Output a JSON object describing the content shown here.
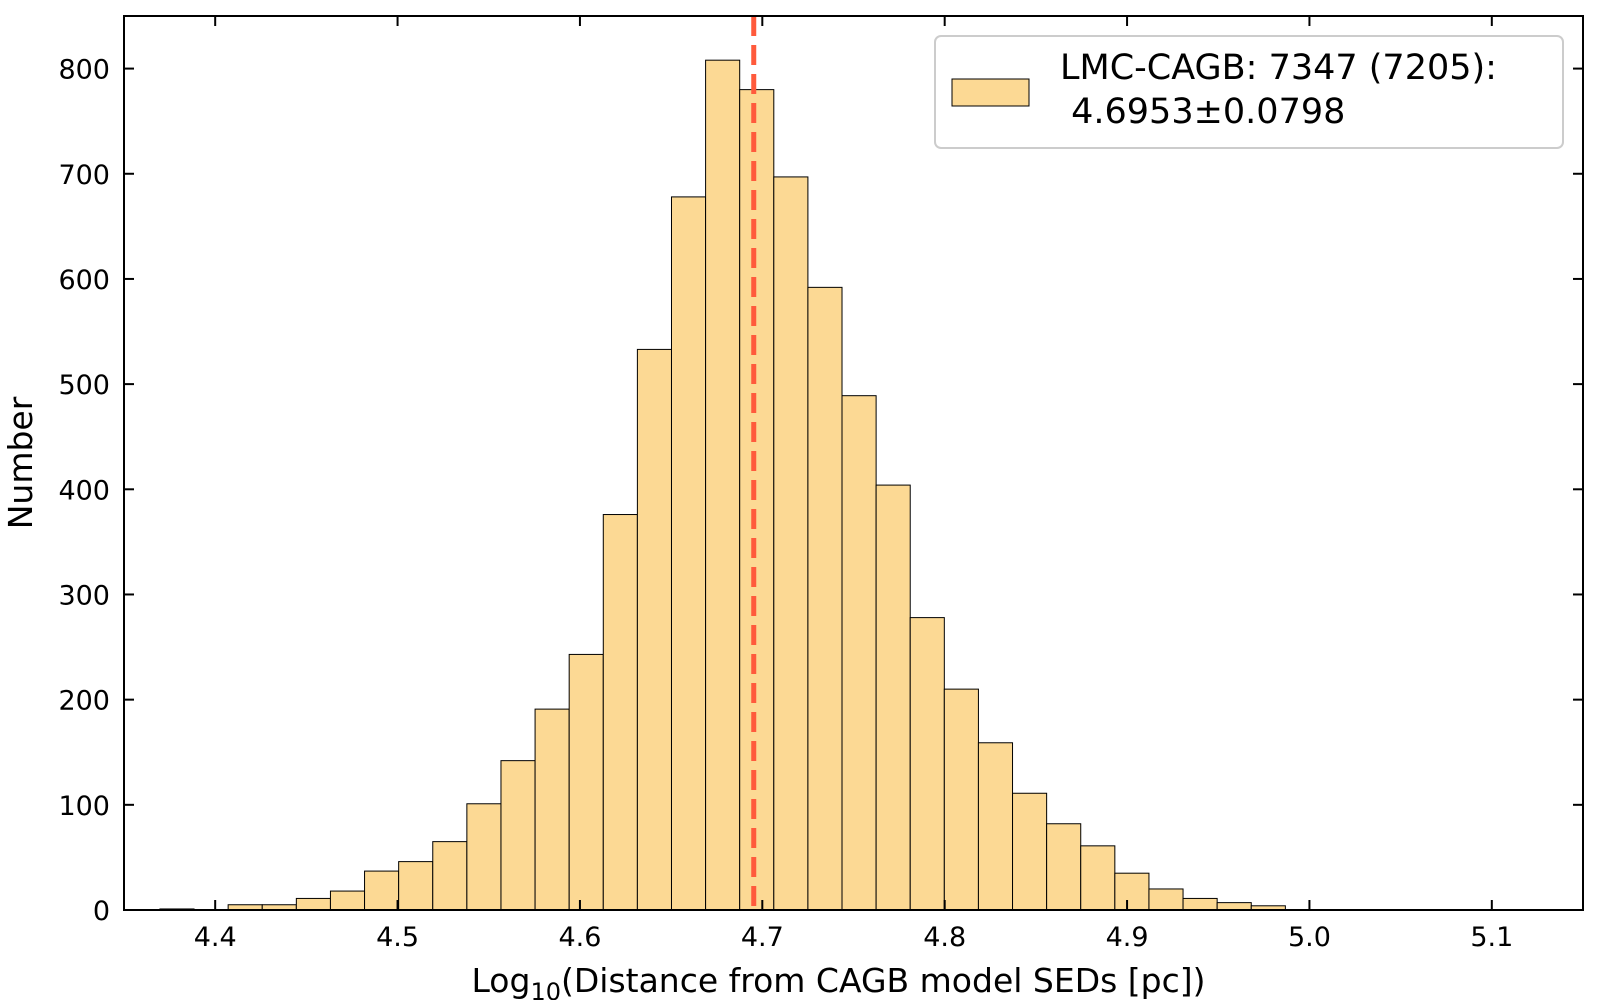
{
  "chart_data": {
    "type": "bar",
    "title": "",
    "xlabel_prefix": "Log",
    "xlabel_sub": "10",
    "xlabel_rest": "(Distance from CAGB model SEDs [pc])",
    "ylabel": "Number",
    "xlim": [
      4.35,
      5.15
    ],
    "ylim": [
      0,
      850
    ],
    "xticks": [
      "4.4",
      "4.5",
      "4.6",
      "4.7",
      "4.8",
      "4.9",
      "5.0",
      "5.1"
    ],
    "yticks": [
      "0",
      "100",
      "200",
      "300",
      "400",
      "500",
      "600",
      "700",
      "800"
    ],
    "bar_color": "#fcd994",
    "bar_edge": "#000000",
    "bins": [
      {
        "start": 4.3697,
        "value": 1
      },
      {
        "start": 4.3884,
        "value": 0
      },
      {
        "start": 4.4071,
        "value": 5
      },
      {
        "start": 4.4258,
        "value": 5
      },
      {
        "start": 4.4445,
        "value": 11
      },
      {
        "start": 4.4632,
        "value": 18
      },
      {
        "start": 4.4819,
        "value": 37
      },
      {
        "start": 4.5006,
        "value": 46
      },
      {
        "start": 4.5193,
        "value": 65
      },
      {
        "start": 4.538,
        "value": 101
      },
      {
        "start": 4.5567,
        "value": 142
      },
      {
        "start": 4.5754,
        "value": 191
      },
      {
        "start": 4.5941,
        "value": 243
      },
      {
        "start": 4.6128,
        "value": 376
      },
      {
        "start": 4.6315,
        "value": 533
      },
      {
        "start": 4.6502,
        "value": 678
      },
      {
        "start": 4.6689,
        "value": 808
      },
      {
        "start": 4.6876,
        "value": 780
      },
      {
        "start": 4.7063,
        "value": 697
      },
      {
        "start": 4.725,
        "value": 592
      },
      {
        "start": 4.7437,
        "value": 489
      },
      {
        "start": 4.7624,
        "value": 404
      },
      {
        "start": 4.7811,
        "value": 278
      },
      {
        "start": 4.7998,
        "value": 210
      },
      {
        "start": 4.8185,
        "value": 159
      },
      {
        "start": 4.8372,
        "value": 111
      },
      {
        "start": 4.8559,
        "value": 82
      },
      {
        "start": 4.8746,
        "value": 61
      },
      {
        "start": 4.8933,
        "value": 35
      },
      {
        "start": 4.912,
        "value": 20
      },
      {
        "start": 4.9307,
        "value": 11
      },
      {
        "start": 4.9494,
        "value": 7
      },
      {
        "start": 4.9681,
        "value": 4
      }
    ],
    "bin_width": 0.0187,
    "mean_line": {
      "x": 4.6953,
      "color": "#ff5a3c"
    },
    "legend": {
      "line1": "LMC-CAGB: 7347 (7205):",
      "line2": " 4.6953±0.0798",
      "position": "top-right"
    }
  }
}
